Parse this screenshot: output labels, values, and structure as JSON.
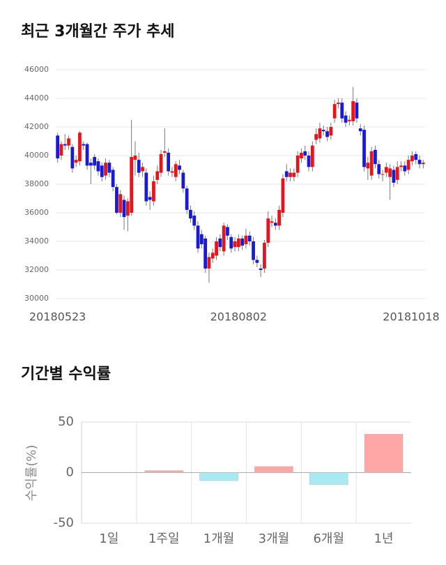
{
  "chart_data": [
    {
      "type": "candlestick",
      "title": "최근 3개월간 주가 추세",
      "categories": [
        "20180523",
        null,
        null,
        null,
        null,
        null,
        null,
        null,
        null,
        null,
        null,
        null,
        null,
        null,
        null,
        null,
        null,
        null,
        null,
        null,
        null,
        null,
        null,
        null,
        null,
        null,
        null,
        null,
        null,
        null,
        null,
        null,
        null,
        null,
        null,
        null,
        null,
        null,
        null,
        null,
        null,
        null,
        null,
        null,
        null,
        null,
        null,
        null,
        null,
        "20180802",
        null,
        null,
        null,
        null,
        null,
        null,
        null,
        null,
        null,
        null,
        null,
        null,
        null,
        null,
        null,
        null,
        null,
        null,
        null,
        null,
        null,
        null,
        null,
        null,
        null,
        null,
        null,
        null,
        null,
        null,
        null,
        null,
        null,
        null,
        null,
        null,
        null,
        null,
        null,
        null,
        null,
        null,
        null,
        null,
        null,
        null,
        "20181018",
        null,
        null,
        null
      ],
      "open": [
        41400,
        40000,
        40800,
        40700,
        40600,
        39500,
        39600,
        40800,
        40800,
        39500,
        39900,
        39600,
        39300,
        38600,
        39500,
        39000,
        37800,
        36000,
        36900,
        35800,
        36000,
        39700,
        39700,
        38900,
        38800,
        37100,
        36800,
        38300,
        38800,
        40200,
        40200,
        38800,
        38500,
        39300,
        38800,
        37700,
        36200,
        35800,
        35100,
        34500,
        34200,
        32100,
        32800,
        33000,
        34200,
        33300,
        35000,
        34300,
        33600,
        33600,
        34200,
        33800,
        34400,
        34000,
        32700,
        32100,
        32100,
        33900,
        35300,
        35300,
        35100,
        36000,
        38900,
        38500,
        38500,
        38800,
        39800,
        40300,
        40000,
        39200,
        41100,
        41200,
        41800,
        41700,
        41400,
        42600,
        43600,
        43700,
        42800,
        42400,
        42400,
        43700,
        41900,
        41800,
        39100,
        38600,
        40400,
        39400,
        38700,
        38800,
        38500,
        39000,
        38300,
        39200,
        39300,
        39000,
        39600,
        40100,
        39700,
        39400
      ],
      "high": [
        41600,
        41000,
        41500,
        41400,
        40800,
        40000,
        41700,
        41000,
        40900,
        39800,
        40100,
        39800,
        39500,
        39800,
        39700,
        39200,
        38000,
        37600,
        37200,
        37000,
        42500,
        41000,
        40200,
        39500,
        39100,
        37500,
        38600,
        39300,
        40400,
        41900,
        40500,
        39200,
        39600,
        39700,
        39000,
        37900,
        36500,
        36100,
        35400,
        34800,
        34400,
        33200,
        33500,
        34300,
        34500,
        35300,
        35200,
        34500,
        34300,
        34500,
        34400,
        34900,
        34700,
        34300,
        33000,
        32400,
        34100,
        36100,
        35800,
        35600,
        36500,
        38700,
        39400,
        39100,
        39100,
        40300,
        40500,
        40700,
        40300,
        41000,
        41900,
        42300,
        42100,
        42000,
        42300,
        43900,
        44000,
        44000,
        43100,
        42800,
        44800,
        44000,
        42200,
        42100,
        39900,
        40600,
        40700,
        39700,
        39000,
        39500,
        39400,
        39300,
        39600,
        39600,
        39600,
        40000,
        40300,
        40300,
        40000,
        39700
      ],
      "low": [
        39500,
        39700,
        40400,
        40400,
        38800,
        39200,
        39300,
        40400,
        39000,
        38000,
        39000,
        38600,
        38200,
        38300,
        38500,
        37500,
        35900,
        35700,
        34800,
        34700,
        35800,
        38600,
        38500,
        38500,
        36500,
        36200,
        36500,
        38000,
        38500,
        39900,
        38600,
        38500,
        38200,
        38700,
        37400,
        35900,
        35300,
        34800,
        33200,
        33500,
        31800,
        31100,
        32500,
        32700,
        33300,
        33000,
        34100,
        33200,
        33300,
        33300,
        33400,
        33500,
        33700,
        32400,
        32200,
        31500,
        31800,
        33600,
        35000,
        34800,
        34800,
        35700,
        38200,
        38200,
        38200,
        38500,
        39500,
        39700,
        38900,
        38900,
        40800,
        40900,
        41400,
        41000,
        41100,
        42300,
        43300,
        42300,
        42000,
        42100,
        42100,
        42300,
        41400,
        38900,
        38300,
        38300,
        39100,
        38400,
        38200,
        38500,
        36900,
        37800,
        38000,
        38900,
        38600,
        38700,
        39300,
        39400,
        39100,
        39100
      ],
      "close": [
        39800,
        40800,
        40700,
        41200,
        39100,
        39700,
        41600,
        40700,
        39300,
        39300,
        39300,
        38900,
        38500,
        39500,
        38800,
        37800,
        36000,
        37300,
        35700,
        36800,
        39900,
        40000,
        38800,
        39200,
        36800,
        36900,
        38200,
        38900,
        40100,
        40300,
        38900,
        38900,
        39400,
        39000,
        37700,
        36200,
        35600,
        35100,
        33500,
        33800,
        32100,
        32900,
        33200,
        34000,
        33600,
        35100,
        34400,
        33500,
        34000,
        34200,
        33700,
        34400,
        34000,
        32700,
        32500,
        32000,
        33900,
        35600,
        35400,
        35100,
        36200,
        38400,
        38500,
        38800,
        38800,
        40000,
        40200,
        40000,
        39200,
        40700,
        41500,
        41900,
        41700,
        41300,
        42000,
        43600,
        43700,
        42600,
        42300,
        42500,
        43800,
        42600,
        41700,
        39200,
        39500,
        40300,
        39400,
        38700,
        38700,
        39200,
        39100,
        38100,
        39200,
        39300,
        38900,
        39700,
        40000,
        39700,
        39400,
        39500
      ],
      "up_color": "#e3161c",
      "down_color": "#1a1ad2",
      "ylim": [
        30000,
        46000
      ],
      "yticks": [
        30000,
        32000,
        34000,
        36000,
        38000,
        40000,
        42000,
        44000,
        46000
      ],
      "grid": true
    },
    {
      "type": "bar",
      "title": "기간별 수익률",
      "ylabel": "수익률(%)",
      "categories": [
        "1일",
        "1주일",
        "1개월",
        "3개월",
        "6개월",
        "1년"
      ],
      "values": [
        0,
        2,
        -8,
        6,
        -12,
        38
      ],
      "positive_color": "#ffa7a7",
      "negative_color": "#a9e9f2",
      "ylim": [
        -50,
        50
      ],
      "yticks": [
        -50,
        0,
        50
      ],
      "grid": true
    }
  ]
}
